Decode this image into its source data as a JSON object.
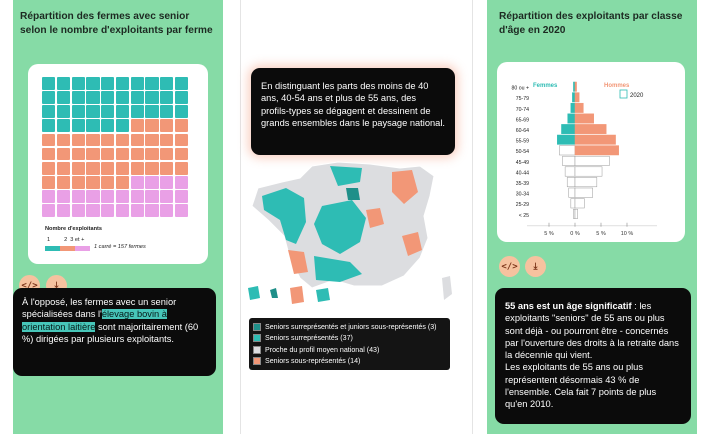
{
  "colors": {
    "panel_green": "#86dba6",
    "teal": "#2ebcb4",
    "salmon": "#f29777",
    "pink": "#e9a0e6",
    "light_gray": "#dcdde0",
    "card_dark": "#0b0b0b",
    "button_orange": "#f6c29f"
  },
  "left": {
    "title": "Répartition des fermes avec senior selon le nombre d'exploitants par ferme",
    "waffle": {
      "counts": {
        "one": 36,
        "two": 40,
        "three_plus": 24
      }
    },
    "legend_title": "Nombre d'exploitants",
    "legend_labels": [
      "1",
      "2",
      "3 et +"
    ],
    "legend_note": "1 carré = 157 fermes",
    "buttons": {
      "embed_icon": "</>",
      "download_icon": "⤓"
    },
    "text_before": "À l'opposé, les fermes avec un senior spécialisées dans l'",
    "text_hl1": "élevage bovin à",
    "text_hl2": "orientation laitière",
    "text_after": " sont majoritairement (60 %) dirigées par plusieurs exploitants."
  },
  "middle": {
    "text": "En distinguant les parts des moins de 40 ans, 40-54 ans et plus de 55 ans, des profils-types se dégagent et dessinent de grands ensembles dans le paysage national.",
    "legend": [
      {
        "label": "Seniors surreprésentés et juniors sous-représentés (3)",
        "color": "#1f8f89"
      },
      {
        "label": "Seniors surreprésentés (37)",
        "color": "#2ebcb4"
      },
      {
        "label": "Proche du profil moyen national (43)",
        "color": "#dcdde0"
      },
      {
        "label": "Seniors sous-représentés (14)",
        "color": "#f29777"
      }
    ]
  },
  "right": {
    "title": "Répartition des exploitants par classe d'âge en 2020",
    "chart_data": {
      "type": "bar",
      "categories": [
        "80 ou +",
        "75-79",
        "70-74",
        "65-69",
        "60-64",
        "55-59",
        "50-54",
        "45-49",
        "40-44",
        "35-39",
        "30-34",
        "25-29",
        "< 25"
      ],
      "series": [
        {
          "name": "Femmes",
          "values": [
            0.3,
            0.5,
            0.8,
            1.4,
            2.6,
            3.4,
            3.0,
            2.4,
            1.9,
            1.5,
            1.2,
            0.8,
            0.3
          ]
        },
        {
          "name": "Hommes",
          "values": [
            0.3,
            0.8,
            1.6,
            3.6,
            6.0,
            7.8,
            8.4,
            6.6,
            5.2,
            4.2,
            3.4,
            1.8,
            0.5
          ]
        }
      ],
      "reference_label": "2020",
      "xticks": [
        "5 %",
        "0 %",
        "5 %",
        "10 %"
      ],
      "xlim": [
        -6,
        12
      ]
    },
    "buttons": {
      "embed_icon": "</>",
      "download_icon": "⤓"
    },
    "text_bold": "55 ans est un âge significatif",
    "text_1": " : les exploitants \"seniors\" de 55 ans ou plus sont déjà - ou pourront être - concernés par l'ouverture des droits à la retraite dans la décennie qui vient.",
    "text_2": "Les exploitants de 55 ans ou plus représentent désormais 43 % de l'ensemble. Cela fait 7 points de plus qu'en 2010."
  }
}
